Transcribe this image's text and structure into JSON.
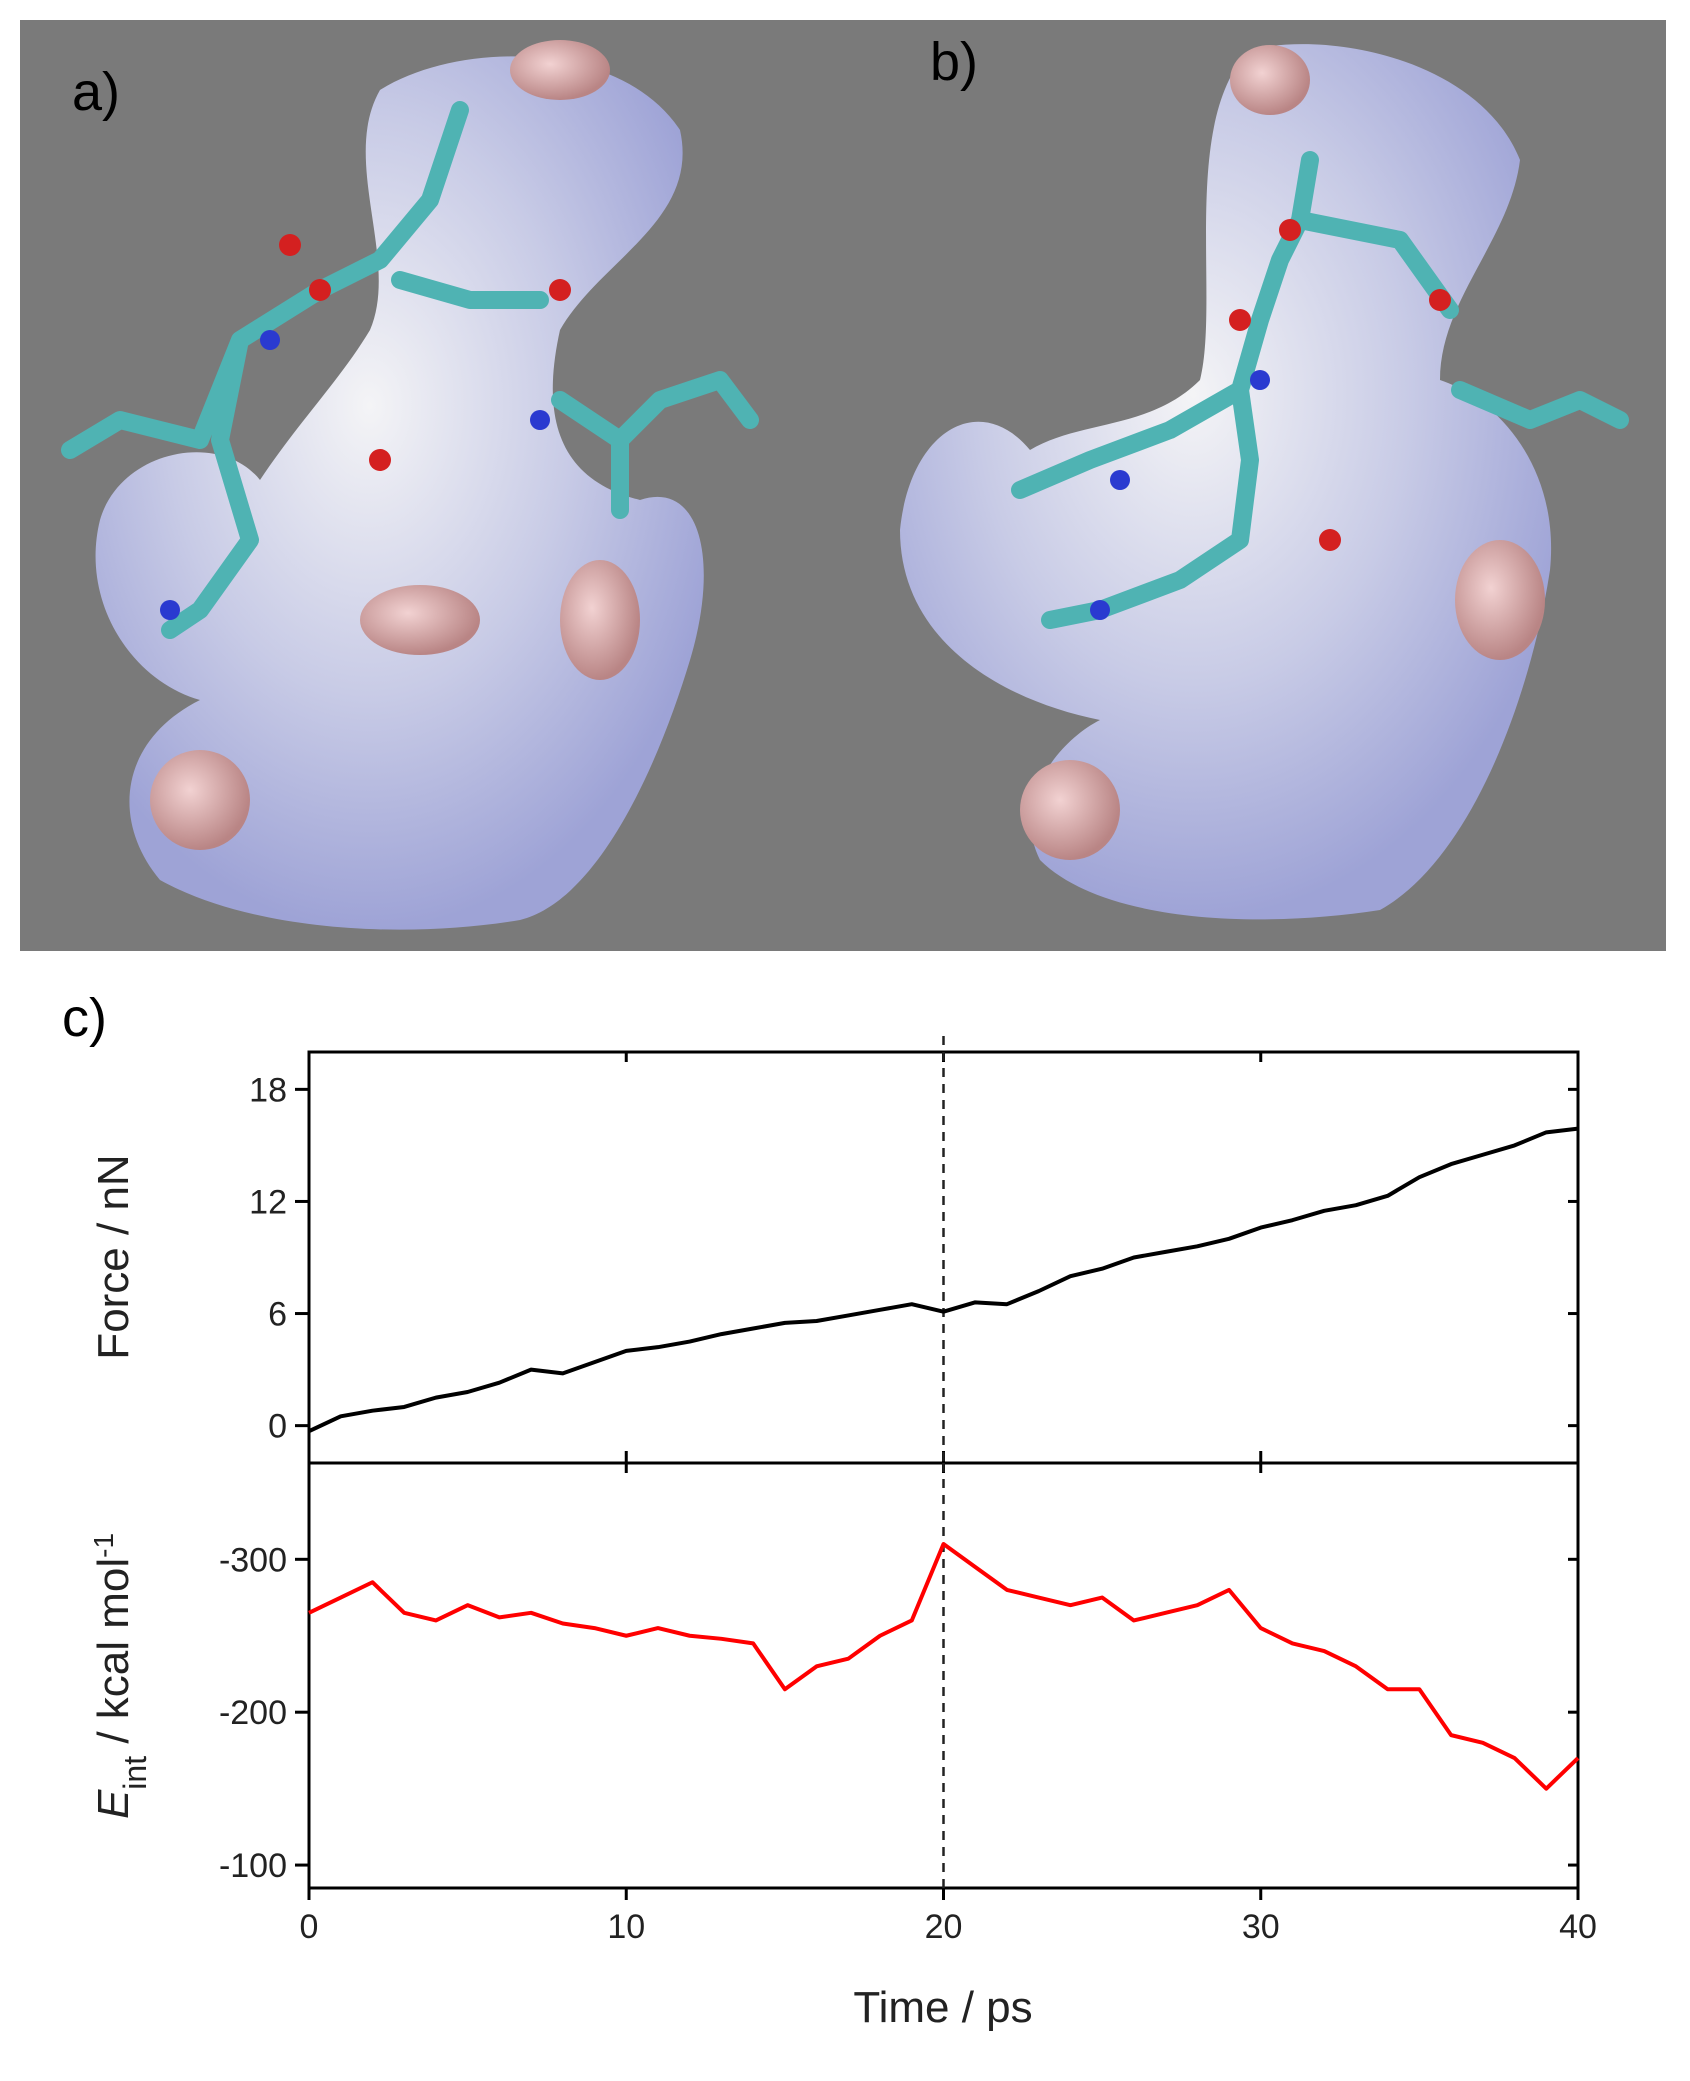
{
  "panel_labels": [
    "a)",
    "b)",
    "c)"
  ],
  "chart_data": [
    {
      "type": "line",
      "ylabel": "Force / nN",
      "color": "#000000",
      "x": [
        0,
        1,
        2,
        3,
        4,
        5,
        6,
        7,
        8,
        9,
        10,
        11,
        12,
        13,
        14,
        15,
        16,
        17,
        18,
        19,
        20,
        21,
        22,
        23,
        24,
        25,
        26,
        27,
        28,
        29,
        30,
        31,
        32,
        33,
        34,
        35,
        36,
        37,
        38,
        39,
        40
      ],
      "values": [
        -0.3,
        0.5,
        0.8,
        1.0,
        1.5,
        1.8,
        2.3,
        3.0,
        2.8,
        3.4,
        4.0,
        4.2,
        4.5,
        4.9,
        5.2,
        5.5,
        5.6,
        5.9,
        6.2,
        6.5,
        6.1,
        6.6,
        6.5,
        7.2,
        8.0,
        8.4,
        9.0,
        9.3,
        9.6,
        10.0,
        10.6,
        11.0,
        11.5,
        11.8,
        12.3,
        13.3,
        14.0,
        14.5,
        15.0,
        15.7,
        15.9
      ],
      "xlim": [
        0,
        40
      ],
      "xticks": [
        0,
        10,
        20,
        30,
        40
      ],
      "ylim": [
        -2,
        20
      ],
      "yticks": [
        0,
        6,
        12,
        18
      ],
      "vline": 20
    },
    {
      "type": "line",
      "ylabel": {
        "symbol": "E",
        "subscript": "int",
        "unit": " / kcal mol",
        "superscript": "-1"
      },
      "xlabel": "Time / ps",
      "color": "#ff0000",
      "x": [
        0,
        1,
        2,
        3,
        4,
        5,
        6,
        7,
        8,
        9,
        10,
        11,
        12,
        13,
        14,
        15,
        16,
        17,
        18,
        19,
        20,
        21,
        22,
        23,
        24,
        25,
        26,
        27,
        28,
        29,
        30,
        31,
        32,
        33,
        34,
        35,
        36,
        37,
        38,
        39,
        40
      ],
      "values": [
        -265,
        -275,
        -285,
        -265,
        -260,
        -270,
        -262,
        -265,
        -258,
        -255,
        -250,
        -255,
        -250,
        -248,
        -245,
        -215,
        -230,
        -235,
        -250,
        -260,
        -310,
        -295,
        -280,
        -275,
        -270,
        -275,
        -260,
        -265,
        -270,
        -280,
        -255,
        -245,
        -240,
        -230,
        -215,
        -215,
        -185,
        -180,
        -170,
        -150,
        -170
      ],
      "xlim": [
        0,
        40
      ],
      "xticks": [
        0,
        10,
        20,
        30,
        40
      ],
      "ylim": [
        -85,
        -363
      ],
      "yticks": [
        -300,
        -200,
        -100
      ],
      "vline": 20
    }
  ]
}
